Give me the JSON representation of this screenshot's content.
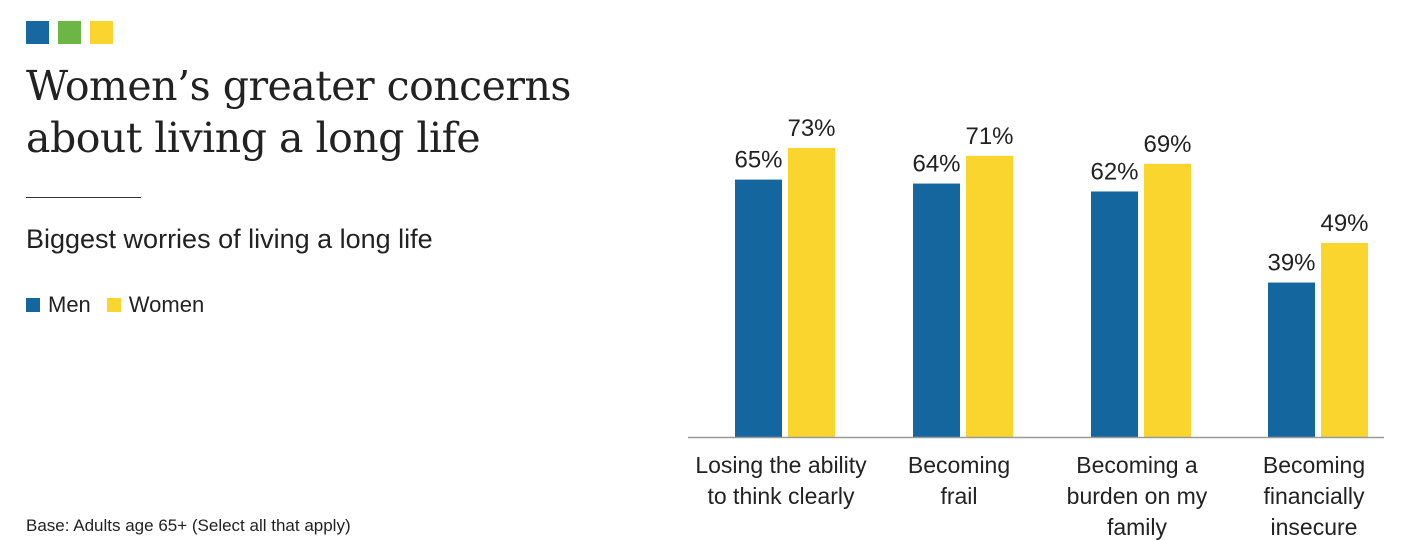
{
  "brand_colors": [
    "#1767a0",
    "#6bb644",
    "#fad52e"
  ],
  "header": {
    "title_lines": [
      "Women’s greater concerns",
      "about living a long life"
    ],
    "subtitle": "Biggest worries of living a long life"
  },
  "footnote": "Base: Adults age 65+ (Select all that apply)",
  "chart_data": {
    "type": "bar",
    "categories": [
      [
        "Losing the ability",
        "to think clearly"
      ],
      [
        "Becoming",
        "frail"
      ],
      [
        "Becoming a",
        "burden on my",
        "family"
      ],
      [
        "Becoming",
        "financially",
        "insecure"
      ]
    ],
    "series": [
      {
        "name": "Men",
        "color": "#13679e",
        "values": [
          65,
          64,
          62,
          39
        ],
        "labels": [
          "65%",
          "64%",
          "62%",
          "39%"
        ]
      },
      {
        "name": "Women",
        "color": "#fad52e",
        "values": [
          73,
          71,
          69,
          49
        ],
        "labels": [
          "73%",
          "71%",
          "69%",
          "49%"
        ]
      }
    ],
    "ylim": [
      0,
      100
    ],
    "grid": false,
    "legend_placement": "top-left"
  }
}
